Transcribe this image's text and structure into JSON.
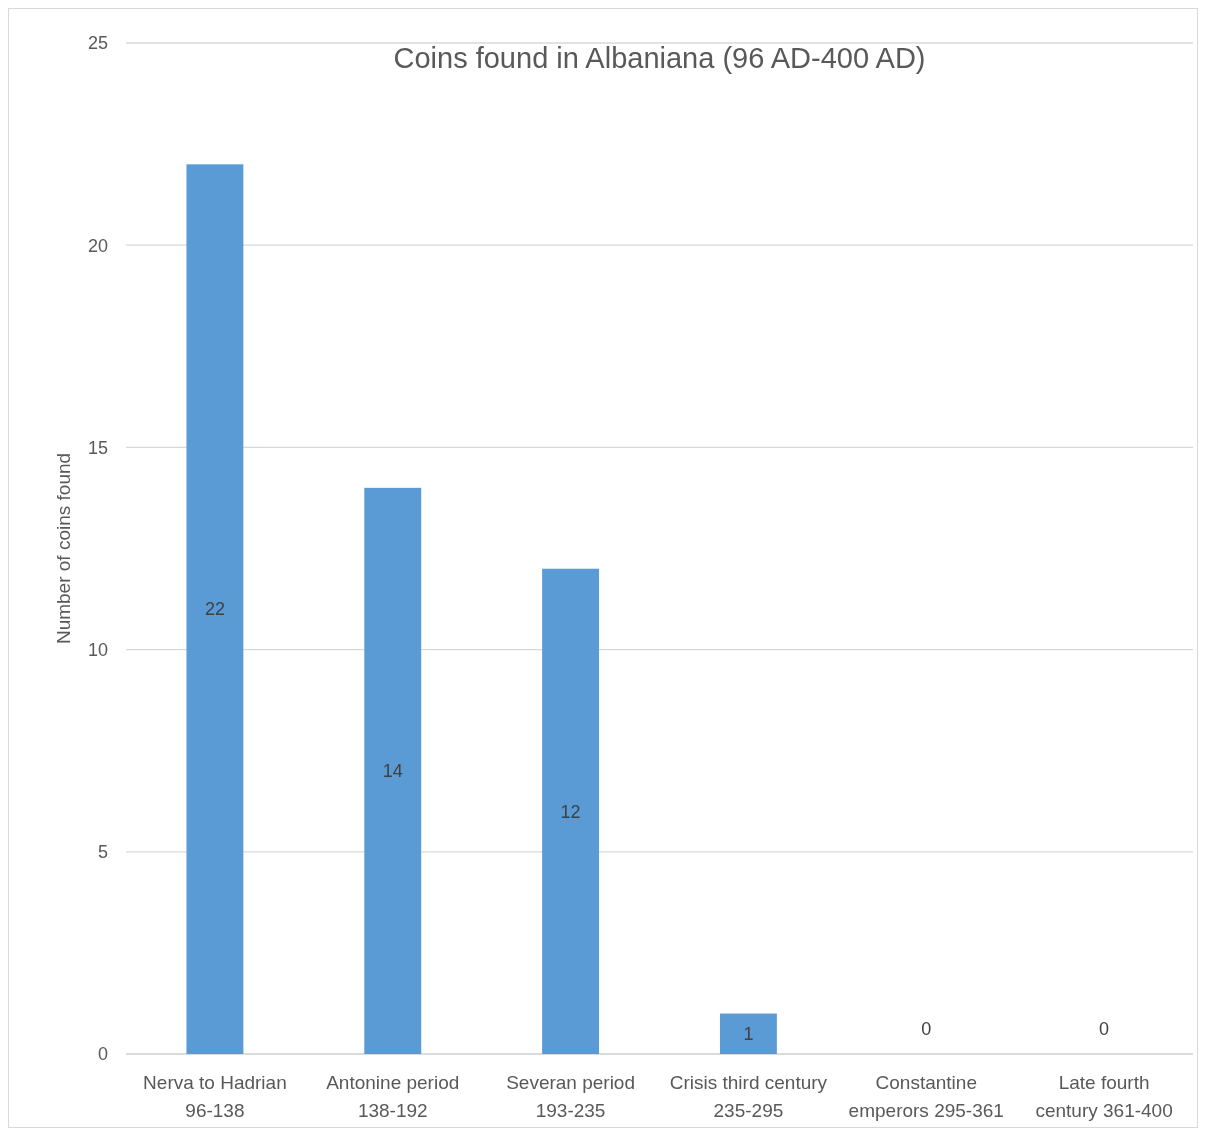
{
  "chart_data": {
    "type": "bar",
    "title": "Coins found in Albaniana (96 AD-400 AD)",
    "ylabel": "Number of coins found",
    "categories": [
      "Nerva to Hadrian\n96-138",
      "Antonine period\n138-192",
      "Severan period\n193-235",
      "Crisis third century\n235-295",
      "Constantine\nemperors 295-361",
      "Late fourth\ncentury 361-400"
    ],
    "values": [
      22,
      14,
      12,
      1,
      0,
      0
    ],
    "color": "#5b9bd5",
    "ylim": [
      0,
      25
    ],
    "yticks": [
      0,
      5,
      10,
      15,
      20,
      25
    ],
    "grid": "y",
    "data_labels": true
  }
}
